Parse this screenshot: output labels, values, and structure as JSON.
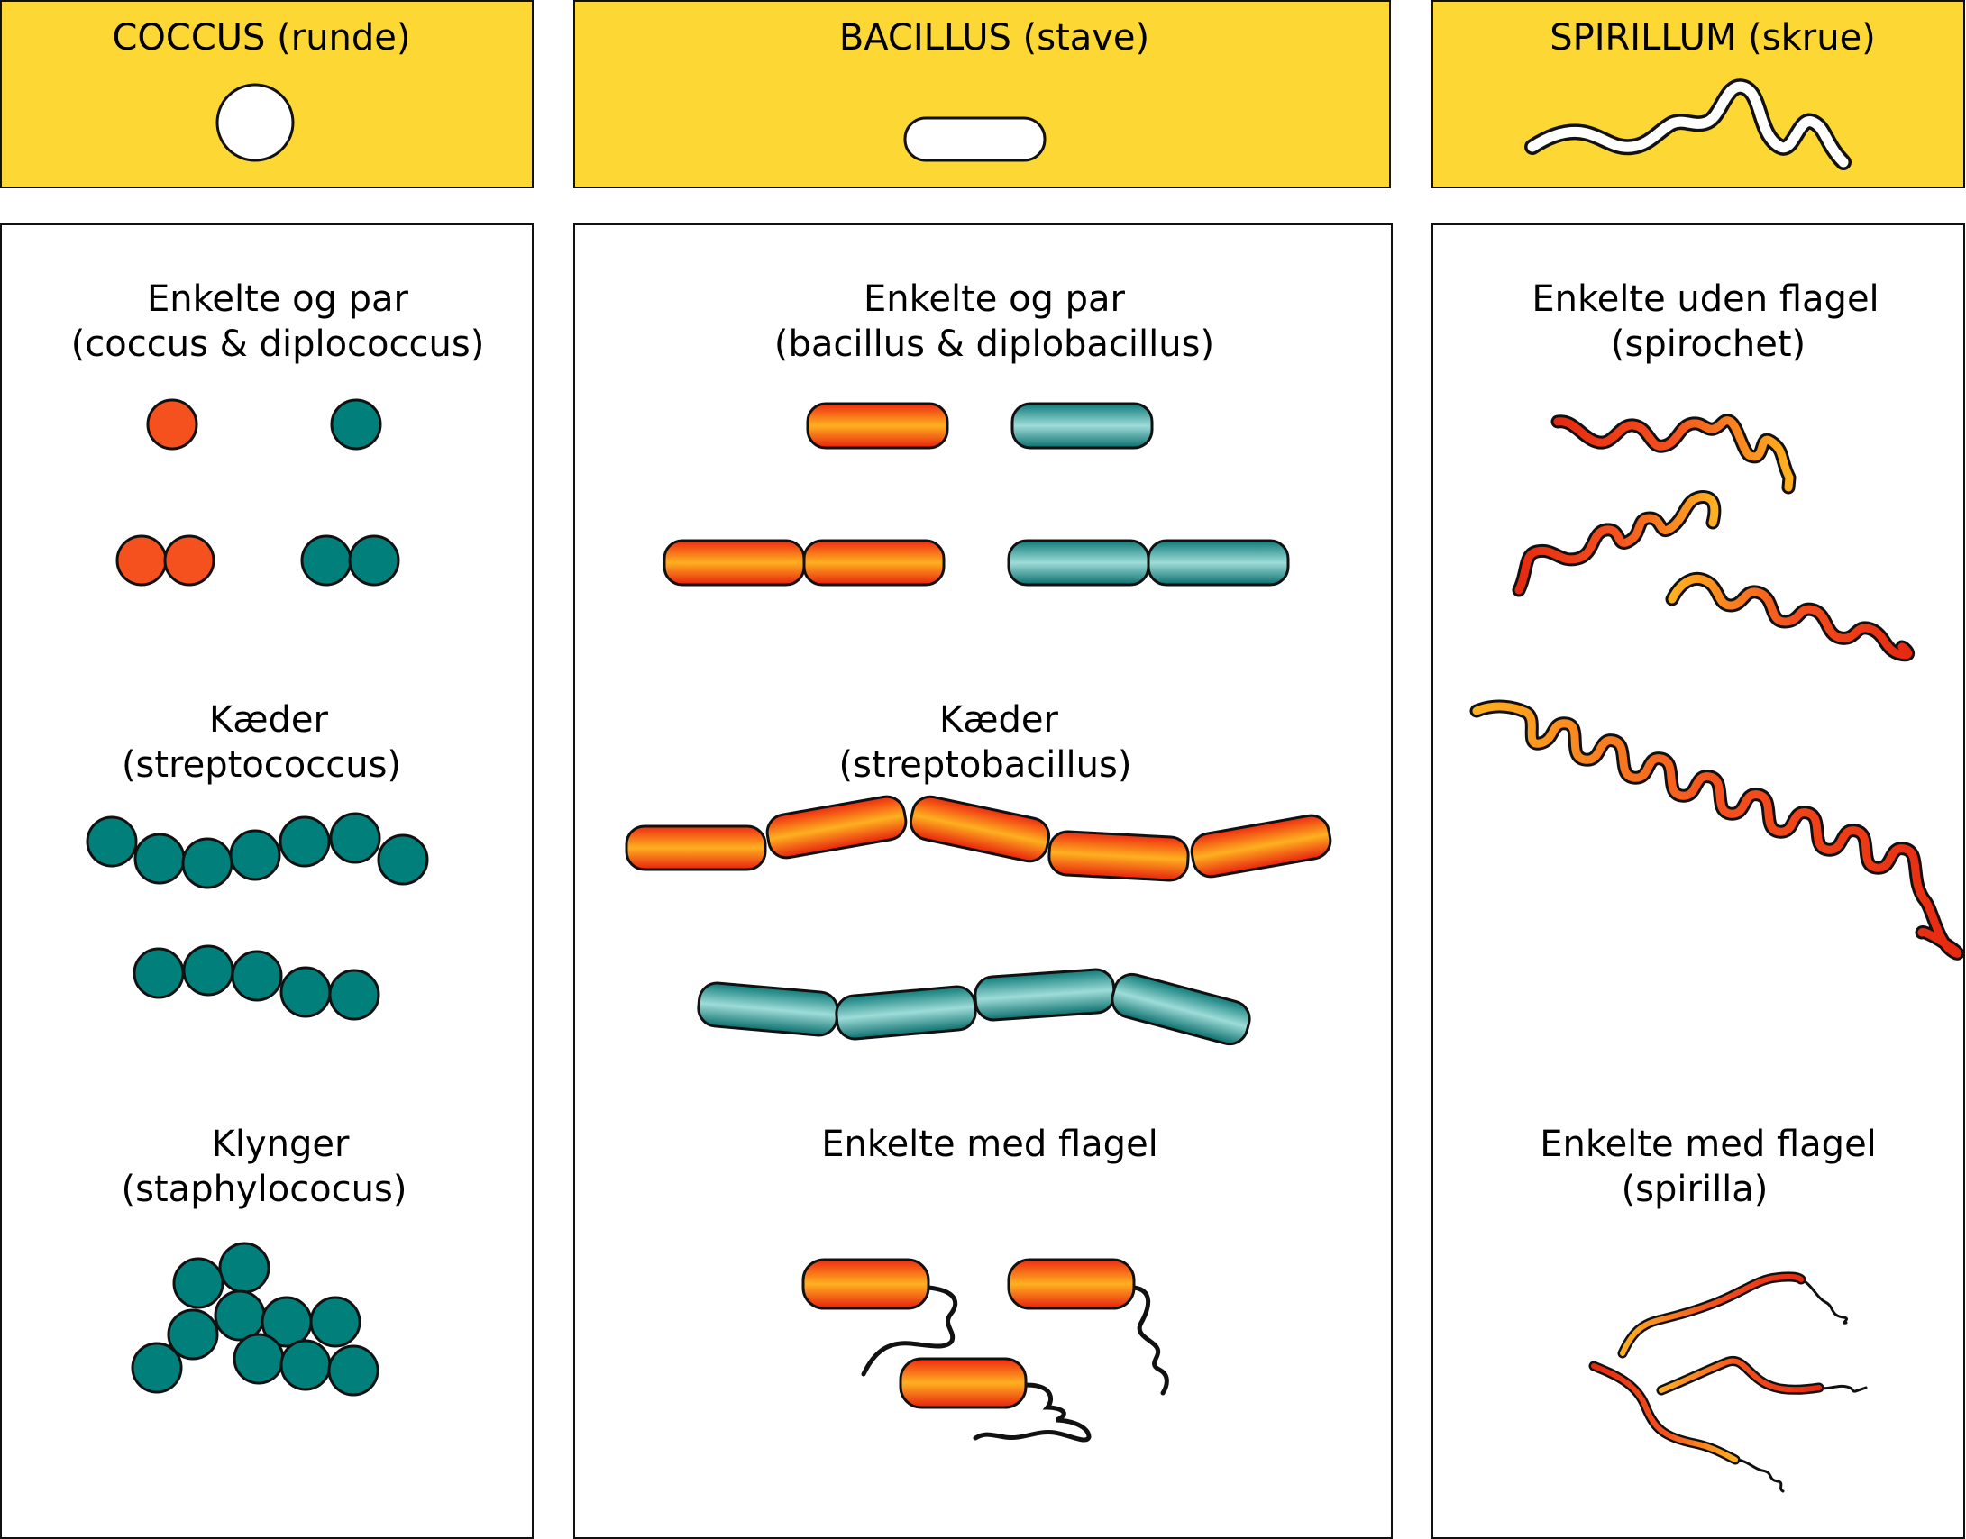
{
  "colors": {
    "header_bg": "#FDD835",
    "coral": "#F4511E",
    "teal": "#007F7B",
    "outline": "#111111"
  },
  "columns": {
    "coccus": {
      "title": "COCCUS (runde)",
      "groups": [
        {
          "line1": "Enkelte og par",
          "line2": "(coccus & diplococcus)"
        },
        {
          "line1": "Kæder",
          "line2": "(streptococcus)"
        },
        {
          "line1": "Klynger",
          "line2": "(staphylococus)"
        }
      ]
    },
    "bacillus": {
      "title": "BACILLUS (stave)",
      "groups": [
        {
          "line1": "Enkelte og par",
          "line2": "(bacillus & diplobacillus)"
        },
        {
          "line1": "Kæder",
          "line2": "(streptobacillus)"
        },
        {
          "line1": "Enkelte med flagel"
        }
      ]
    },
    "spirillum": {
      "title": "SPIRILLUM (skrue)",
      "groups": [
        {
          "line1": "Enkelte uden flagel",
          "line2": "(spirochet)"
        },
        {
          "line1": "Enkelte med flagel",
          "line2": "(spirilla)"
        }
      ]
    }
  }
}
